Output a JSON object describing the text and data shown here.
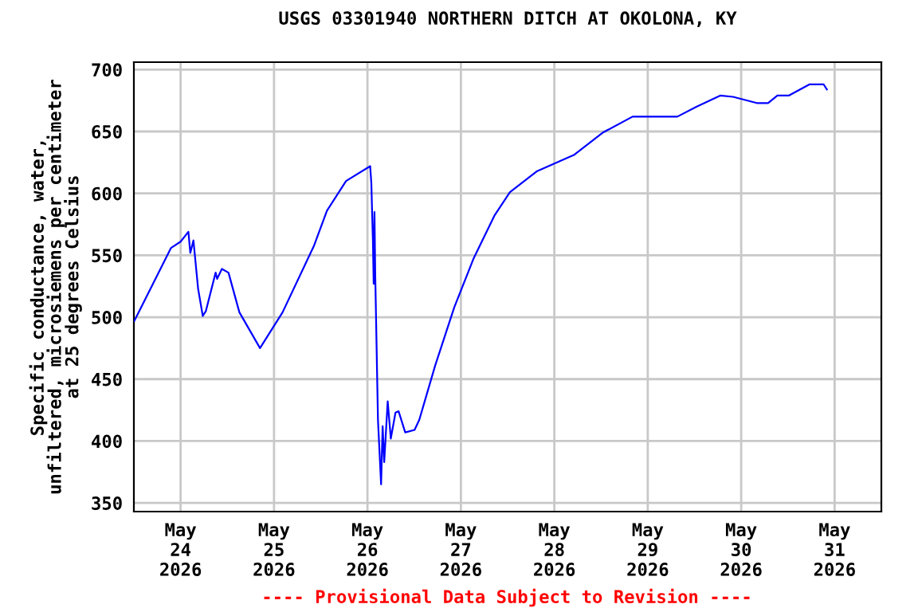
{
  "chart_data": {
    "type": "line",
    "title": "USGS 03301940 NORTHERN DITCH AT OKOLONA, KY",
    "ylabel": "Specific conductance, water,\nunfiltered, microsiemens per centimeter\nat 25 degrees Celsius",
    "annotations": [
      "---- Provisional Data Subject to Revision ----"
    ],
    "x": [
      "2026-05-23T12:06",
      "2026-05-23T12:36",
      "2026-05-23T21:33",
      "2026-05-24T00:00",
      "2026-05-24T02:00",
      "2026-05-24T02:30",
      "2026-05-24T03:18",
      "2026-05-24T04:30",
      "2026-05-24T05:42",
      "2026-05-24T06:30",
      "2026-05-24T09:00",
      "2026-05-24T09:24",
      "2026-05-24T10:36",
      "2026-05-24T12:18",
      "2026-05-24T15:06",
      "2026-05-24T20:24",
      "2026-05-25T02:12",
      "2026-05-25T10:18",
      "2026-05-25T13:36",
      "2026-05-25T18:30",
      "2026-05-26T00:42",
      "2026-05-26T01:00",
      "2026-05-26T01:12",
      "2026-05-26T01:24",
      "2026-05-26T01:36",
      "2026-05-26T01:48",
      "2026-05-26T02:00",
      "2026-05-26T02:42",
      "2026-05-26T03:30",
      "2026-05-26T03:54",
      "2026-05-26T04:18",
      "2026-05-26T05:12",
      "2026-05-26T06:00",
      "2026-05-26T07:12",
      "2026-05-26T08:00",
      "2026-05-26T09:42",
      "2026-05-26T12:06",
      "2026-05-26T13:18",
      "2026-05-26T17:24",
      "2026-05-26T22:18",
      "2026-05-27T03:12",
      "2026-05-27T08:36",
      "2026-05-27T12:36",
      "2026-05-27T19:36",
      "2026-05-28T05:00",
      "2026-05-28T12:24",
      "2026-05-28T20:06",
      "2026-05-29T07:36",
      "2026-05-29T12:30",
      "2026-05-29T18:36",
      "2026-05-29T21:54",
      "2026-05-30T04:00",
      "2026-05-30T06:54",
      "2026-05-30T09:18",
      "2026-05-30T12:12",
      "2026-05-30T17:30",
      "2026-05-30T21:12",
      "2026-05-30T22:00"
    ],
    "series": [
      {
        "color": "#0000ff",
        "values": [
          497,
          500,
          556,
          561,
          569,
          552,
          562,
          523,
          501,
          505,
          536,
          531,
          539,
          536,
          504,
          475,
          504,
          558,
          586,
          610,
          622,
          608,
          584,
          562,
          527,
          585,
          534,
          417,
          365,
          412,
          383,
          432,
          402,
          423,
          424,
          407,
          409,
          417,
          461,
          508,
          547,
          582,
          601,
          618,
          631,
          649,
          662,
          662,
          670,
          679,
          678,
          673,
          673,
          679,
          679,
          688,
          688,
          684
        ]
      }
    ],
    "xlim": [
      "2026-05-23T12:00",
      "2026-05-31T12:00"
    ],
    "xticks": [
      {
        "value": "2026-05-24",
        "label": "May\n24\n2026"
      },
      {
        "value": "2026-05-25",
        "label": "May\n25\n2026"
      },
      {
        "value": "2026-05-26",
        "label": "May\n26\n2026"
      },
      {
        "value": "2026-05-27",
        "label": "May\n27\n2026"
      },
      {
        "value": "2026-05-28",
        "label": "May\n28\n2026"
      },
      {
        "value": "2026-05-29",
        "label": "May\n29\n2026"
      },
      {
        "value": "2026-05-30",
        "label": "May\n30\n2026"
      },
      {
        "value": "2026-05-31",
        "label": "May\n31\n2026"
      }
    ],
    "ylim": [
      343,
      706
    ],
    "yticks": [
      350,
      400,
      450,
      500,
      550,
      600,
      650,
      700
    ],
    "grid": true
  }
}
